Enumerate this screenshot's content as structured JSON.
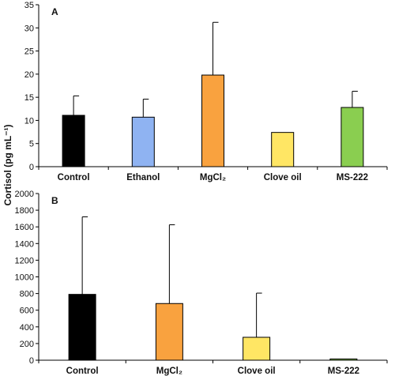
{
  "figure": {
    "ylabel": "Cortisol (pg mL⁻¹)"
  },
  "chart_data": [
    {
      "type": "bar",
      "panel": "A",
      "categories": [
        "Control",
        "Ethanol",
        "MgCl₂",
        "Clove oil",
        "MS-222"
      ],
      "values": [
        11.1,
        10.7,
        19.8,
        7.4,
        12.8
      ],
      "error_upper": [
        4.2,
        3.9,
        11.4,
        0,
        3.5
      ],
      "colors": [
        "#000000",
        "#8FB3F2",
        "#F9A23F",
        "#FFE664",
        "#8ACE50"
      ],
      "ylim": [
        0,
        35
      ],
      "yticks": [
        0,
        5,
        10,
        15,
        20,
        25,
        30,
        35
      ],
      "xlabel": "",
      "ylabel": "Cortisol (pg mL⁻¹)",
      "grid": false
    },
    {
      "type": "bar",
      "panel": "B",
      "categories": [
        "Control",
        "MgCl₂",
        "Clove oil",
        "MS-222"
      ],
      "values": [
        790,
        680,
        275,
        15
      ],
      "error_upper": [
        930,
        945,
        530,
        0
      ],
      "colors": [
        "#000000",
        "#F9A23F",
        "#FFE664",
        "#8ACE50"
      ],
      "ylim": [
        0,
        2000
      ],
      "yticks": [
        0,
        200,
        400,
        600,
        800,
        1000,
        1200,
        1400,
        1600,
        1800,
        2000
      ],
      "xlabel": "",
      "ylabel": "Cortisol (pg mL⁻¹)",
      "grid": false
    }
  ]
}
